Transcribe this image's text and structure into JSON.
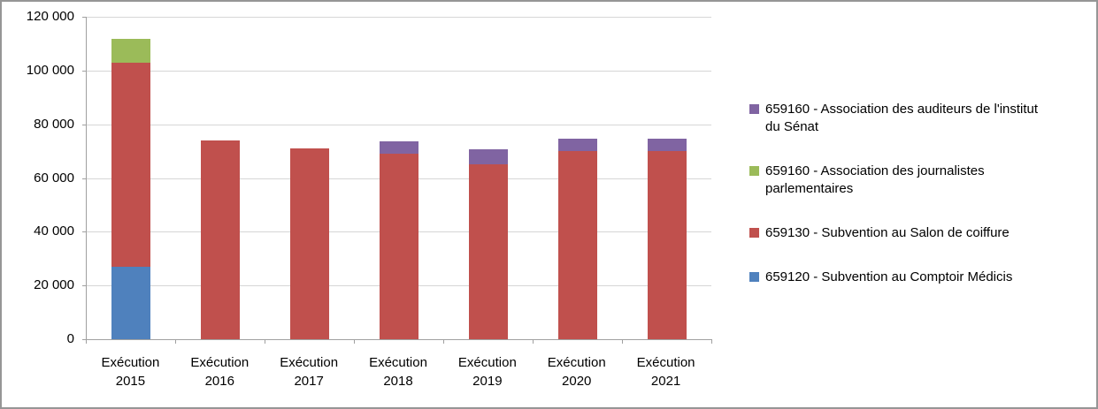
{
  "chart_data": {
    "type": "bar",
    "variant": "stacked-column",
    "title": "",
    "categories": [
      "Exécution 2015",
      "Exécution 2016",
      "Exécution 2017",
      "Exécution 2018",
      "Exécution 2019",
      "Exécution 2020",
      "Exécution 2021"
    ],
    "series": [
      {
        "name": "659120 - Subvention au Comptoir Médicis",
        "color": "#4F81BD",
        "values": [
          27000,
          0,
          0,
          0,
          0,
          0,
          0
        ]
      },
      {
        "name": "659130 - Subvention au Salon de coiffure",
        "color": "#C0504D",
        "values": [
          76000,
          74000,
          71000,
          69000,
          65000,
          70000,
          70000
        ]
      },
      {
        "name": "659160 - Association des journalistes parlementaires",
        "color": "#9BBB59",
        "values": [
          9000,
          0,
          0,
          0,
          0,
          0,
          0
        ]
      },
      {
        "name": "659160 - Association des auditeurs de l'institut du Sénat",
        "color": "#8064A2",
        "values": [
          0,
          0,
          0,
          4500,
          5500,
          4500,
          4500
        ]
      }
    ],
    "legend_order": [
      3,
      2,
      1,
      0
    ],
    "legend_position": "right",
    "grid": true,
    "y_axis": {
      "min": 0,
      "max": 120000,
      "step": 20000,
      "tick_labels": [
        "0",
        "20 000",
        "40 000",
        "60 000",
        "80 000",
        "100 000",
        "120 000"
      ]
    }
  },
  "colors": {
    "background": "#FFFFFF",
    "frame_border": "#969696",
    "gridline": "#D6D6D6",
    "axis_line": "#A0A0A0",
    "text": "#000000"
  }
}
